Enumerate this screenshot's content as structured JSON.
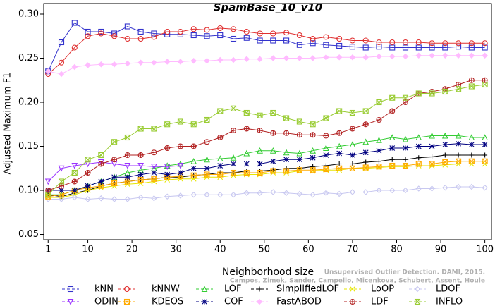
{
  "chart_data": {
    "type": "line",
    "title": "SpamBase_10_v10",
    "xlabel": "Neighborhood size",
    "ylabel": "Adjusted Maximum F1",
    "watermark": [
      "Unsupervised Outlier Detection. DAMI, 2015.",
      "Campos, Zimek, Sander, Campello, Micenkova, Schubert, Assent, Houle"
    ],
    "xlim": [
      0,
      101.5
    ],
    "ylim": [
      0.044,
      0.312
    ],
    "xticks": [
      1,
      10,
      20,
      30,
      40,
      50,
      60,
      70,
      80,
      90,
      100
    ],
    "yticks": [
      {
        "value": 0.05,
        "label": "0.05"
      },
      {
        "value": 0.1,
        "label": "0.10"
      },
      {
        "value": 0.15,
        "label": "0.15"
      },
      {
        "value": 0.2,
        "label": "0.20"
      },
      {
        "value": 0.25,
        "label": "0.25"
      },
      {
        "value": 0.3,
        "label": "0.30"
      }
    ],
    "x": [
      1,
      4,
      7,
      10,
      13,
      16,
      19,
      22,
      25,
      28,
      31,
      34,
      37,
      40,
      43,
      46,
      49,
      52,
      55,
      58,
      61,
      64,
      67,
      70,
      73,
      76,
      79,
      82,
      85,
      88,
      91,
      94,
      97,
      100
    ],
    "series": [
      {
        "name": "kNN",
        "color": "#3333cc",
        "marker": "square",
        "values": [
          0.235,
          0.268,
          0.29,
          0.28,
          0.28,
          0.278,
          0.286,
          0.28,
          0.278,
          0.277,
          0.277,
          0.276,
          0.275,
          0.276,
          0.272,
          0.273,
          0.27,
          0.27,
          0.27,
          0.265,
          0.267,
          0.265,
          0.264,
          0.263,
          0.262,
          0.263,
          0.262,
          0.262,
          0.262,
          0.262,
          0.262,
          0.263,
          0.262,
          0.262
        ]
      },
      {
        "name": "kNNW",
        "color": "#e03030",
        "marker": "circle",
        "values": [
          0.232,
          0.245,
          0.262,
          0.275,
          0.278,
          0.275,
          0.272,
          0.272,
          0.274,
          0.28,
          0.28,
          0.283,
          0.282,
          0.284,
          0.283,
          0.28,
          0.278,
          0.278,
          0.279,
          0.276,
          0.272,
          0.274,
          0.272,
          0.27,
          0.27,
          0.268,
          0.268,
          0.268,
          0.268,
          0.267,
          0.267,
          0.267,
          0.267,
          0.267
        ]
      },
      {
        "name": "LOF",
        "color": "#33cc33",
        "marker": "triangle",
        "values": [
          0.095,
          0.095,
          0.1,
          0.105,
          0.11,
          0.115,
          0.12,
          0.123,
          0.125,
          0.128,
          0.13,
          0.133,
          0.135,
          0.136,
          0.137,
          0.142,
          0.145,
          0.145,
          0.143,
          0.142,
          0.145,
          0.148,
          0.15,
          0.152,
          0.155,
          0.157,
          0.16,
          0.158,
          0.16,
          0.162,
          0.162,
          0.162,
          0.16,
          0.16
        ]
      },
      {
        "name": "SimplifiedLOF",
        "color": "#000000",
        "marker": "plus",
        "values": [
          0.095,
          0.093,
          0.097,
          0.1,
          0.105,
          0.108,
          0.11,
          0.112,
          0.113,
          0.115,
          0.115,
          0.117,
          0.118,
          0.12,
          0.12,
          0.122,
          0.122,
          0.123,
          0.125,
          0.125,
          0.127,
          0.128,
          0.13,
          0.13,
          0.132,
          0.133,
          0.135,
          0.135,
          0.137,
          0.138,
          0.14,
          0.14,
          0.14,
          0.14
        ]
      },
      {
        "name": "LoOP",
        "color": "#e6e600",
        "marker": "cross",
        "values": [
          0.092,
          0.092,
          0.095,
          0.1,
          0.103,
          0.105,
          0.107,
          0.108,
          0.11,
          0.112,
          0.113,
          0.113,
          0.115,
          0.115,
          0.117,
          0.118,
          0.118,
          0.12,
          0.12,
          0.122,
          0.122,
          0.123,
          0.123,
          0.125,
          0.125,
          0.126,
          0.127,
          0.127,
          0.128,
          0.128,
          0.129,
          0.13,
          0.13,
          0.13
        ]
      },
      {
        "name": "LDOF",
        "color": "#c8c8f0",
        "marker": "diamond",
        "values": [
          0.09,
          0.09,
          0.092,
          0.09,
          0.091,
          0.09,
          0.09,
          0.092,
          0.091,
          0.093,
          0.094,
          0.095,
          0.095,
          0.095,
          0.095,
          0.097,
          0.097,
          0.098,
          0.097,
          0.096,
          0.095,
          0.097,
          0.096,
          0.098,
          0.098,
          0.1,
          0.1,
          0.1,
          0.102,
          0.102,
          0.103,
          0.104,
          0.104,
          0.103
        ]
      },
      {
        "name": "ODIN",
        "color": "#9933ff",
        "marker": "tridown",
        "values": [
          0.11,
          0.125,
          0.128,
          0.13,
          0.132,
          0.13,
          0.128,
          0.128,
          0.127,
          0.127,
          0.128,
          null,
          null,
          null,
          null,
          null,
          null,
          null,
          null,
          null,
          null,
          null,
          null,
          null,
          null,
          null,
          null,
          null,
          null,
          null,
          null,
          null,
          null,
          null
        ]
      },
      {
        "name": "KDEOS",
        "color": "#ffaa00",
        "marker": "boxx",
        "values": [
          0.093,
          0.095,
          0.1,
          0.103,
          0.105,
          0.108,
          0.11,
          0.112,
          0.113,
          0.115,
          0.116,
          0.117,
          0.118,
          0.118,
          0.12,
          0.12,
          0.12,
          0.122,
          0.122,
          0.123,
          0.123,
          0.124,
          0.125,
          0.125,
          0.126,
          0.127,
          0.128,
          0.128,
          0.13,
          0.13,
          0.132,
          0.133,
          0.133,
          0.133
        ]
      },
      {
        "name": "COF",
        "color": "#000080",
        "marker": "asterisk",
        "values": [
          0.1,
          0.1,
          0.1,
          0.105,
          0.11,
          0.115,
          0.115,
          0.118,
          0.12,
          0.118,
          0.12,
          0.125,
          0.125,
          0.128,
          0.13,
          0.13,
          0.13,
          0.133,
          0.135,
          0.135,
          0.137,
          0.14,
          0.142,
          0.14,
          0.143,
          0.145,
          0.148,
          0.148,
          0.15,
          0.15,
          0.152,
          0.153,
          0.152,
          0.152
        ]
      },
      {
        "name": "FastABOD",
        "color": "#ffbbff",
        "marker": "diamondfill",
        "values": [
          0.235,
          0.232,
          0.24,
          0.242,
          0.243,
          0.243,
          0.244,
          0.245,
          0.245,
          0.246,
          0.246,
          0.247,
          0.247,
          0.248,
          0.248,
          0.249,
          0.249,
          0.25,
          0.25,
          0.25,
          0.25,
          0.251,
          0.251,
          0.251,
          0.251,
          0.252,
          0.252,
          0.252,
          0.253,
          0.253,
          0.253,
          0.253,
          0.253,
          0.253
        ]
      },
      {
        "name": "LDF",
        "color": "#b22222",
        "marker": "circleplus",
        "values": [
          0.1,
          0.105,
          0.11,
          0.12,
          0.13,
          0.135,
          0.14,
          0.14,
          0.143,
          0.148,
          0.15,
          0.15,
          0.155,
          0.16,
          0.168,
          0.17,
          0.168,
          0.165,
          0.165,
          0.163,
          0.163,
          0.162,
          0.165,
          0.17,
          0.175,
          0.18,
          0.19,
          0.2,
          0.21,
          0.212,
          0.215,
          0.22,
          0.225,
          0.225
        ]
      },
      {
        "name": "INFLO",
        "color": "#99cc33",
        "marker": "boxx",
        "values": [
          0.095,
          0.11,
          0.12,
          0.135,
          0.14,
          0.155,
          0.16,
          0.17,
          0.17,
          0.175,
          0.178,
          0.175,
          0.18,
          0.19,
          0.193,
          0.188,
          0.185,
          0.188,
          0.182,
          0.178,
          0.175,
          0.182,
          0.19,
          0.188,
          0.19,
          0.2,
          0.205,
          0.205,
          0.21,
          0.21,
          0.212,
          0.215,
          0.218,
          0.22
        ]
      }
    ]
  }
}
